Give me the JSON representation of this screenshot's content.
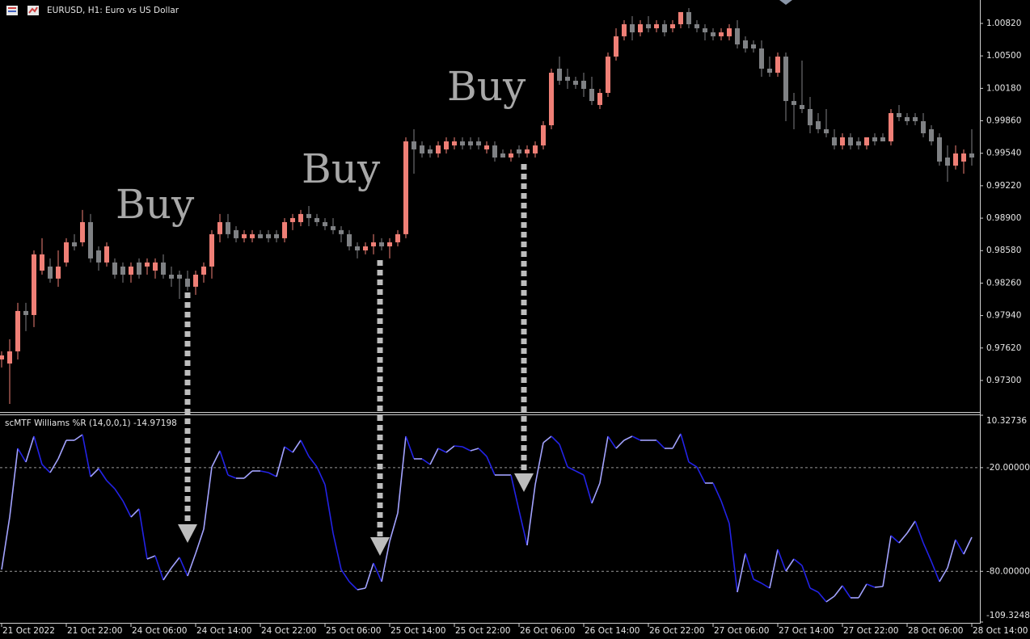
{
  "chart_data": [
    {
      "type": "candlestick",
      "title": "EURUSD, H1:  Euro vs US Dollar",
      "up_color": "#ef7f76",
      "down_color": "#7f8184",
      "ylim": [
        0.96989,
        1.01051
      ],
      "yticks": [
        {
          "value": 1.0082,
          "label": "1.00820"
        },
        {
          "value": 1.005,
          "label": "1.00500"
        },
        {
          "value": 1.0018,
          "label": "1.00180"
        },
        {
          "value": 0.9986,
          "label": "0.99860"
        },
        {
          "value": 0.9954,
          "label": "0.99540"
        },
        {
          "value": 0.9922,
          "label": "0.99220"
        },
        {
          "value": 0.989,
          "label": "0.98900"
        },
        {
          "value": 0.9858,
          "label": "0.98580"
        },
        {
          "value": 0.9826,
          "label": "0.98260"
        },
        {
          "value": 0.9794,
          "label": "0.97940"
        },
        {
          "value": 0.9762,
          "label": "0.97620"
        },
        {
          "value": 0.973,
          "label": "0.97300"
        }
      ],
      "annotations": [
        "Buy",
        "Buy",
        "Buy"
      ],
      "open": [
        0.97507,
        0.97467,
        0.97587,
        0.97985,
        0.97945,
        0.98383,
        0.98423,
        0.98304,
        0.98463,
        0.98662,
        0.98662,
        0.98861,
        0.98582,
        0.98463,
        0.98463,
        0.98423,
        0.98343,
        0.98463,
        0.98423,
        0.98383,
        0.98463,
        0.98343,
        0.98343,
        0.98304,
        0.98224,
        0.98343,
        0.98423,
        0.98742,
        0.98861,
        0.98782,
        0.98702,
        0.98702,
        0.98742,
        0.98742,
        0.98742,
        0.98702,
        0.98861,
        0.98861,
        0.98941,
        0.98901,
        0.98861,
        0.98821,
        0.98782,
        0.98742,
        0.98622,
        0.98582,
        0.98622,
        0.98662,
        0.98622,
        0.98662,
        0.98742,
        0.99657,
        0.99617,
        0.99578,
        0.99538,
        0.99578,
        0.99617,
        0.99657,
        0.99657,
        0.99657,
        0.99578,
        0.99617,
        0.99538,
        0.99498,
        0.99578,
        0.99538,
        0.99538,
        0.99617,
        0.99816,
        1.00374,
        1.00294,
        1.00255,
        1.00255,
        1.00175,
        1.00016,
        1.00135,
        1.00493,
        1.00693,
        1.00812,
        1.00732,
        1.00812,
        1.00772,
        1.00812,
        1.00772,
        1.00812,
        1.00932,
        1.00812,
        1.00772,
        1.00732,
        1.00693,
        1.00693,
        1.00772,
        1.00653,
        1.00613,
        1.00573,
        1.00374,
        1.00334,
        1.00493,
        1.00055,
        1.00016,
        0.99976,
        0.99856,
        0.99777,
        0.99697,
        0.99617,
        0.99697,
        0.99657,
        0.99617,
        0.99697,
        0.99697,
        0.99657,
        0.99936,
        0.99896,
        0.99896,
        0.99856,
        0.99777,
        0.99697,
        0.99498,
        0.99418,
        0.99458,
        0.99538
      ],
      "high": [
        0.97587,
        0.97706,
        0.98065,
        0.98065,
        0.98582,
        0.98702,
        0.98503,
        0.98582,
        0.98702,
        0.98742,
        0.98981,
        0.98941,
        0.98622,
        0.98662,
        0.98503,
        0.98463,
        0.98463,
        0.98503,
        0.98503,
        0.98503,
        0.98543,
        0.98423,
        0.98383,
        0.98383,
        0.98383,
        0.98463,
        0.98782,
        0.98941,
        0.98941,
        0.98821,
        0.98782,
        0.98782,
        0.98782,
        0.98782,
        0.98782,
        0.98901,
        0.98941,
        0.98981,
        0.9902,
        0.98941,
        0.98901,
        0.98901,
        0.98821,
        0.98782,
        0.98662,
        0.98662,
        0.98742,
        0.98702,
        0.98702,
        0.98782,
        0.99697,
        0.99777,
        0.99657,
        0.99617,
        0.99657,
        0.99697,
        0.99697,
        0.99697,
        0.99697,
        0.99697,
        0.99657,
        0.99657,
        0.99578,
        0.99578,
        0.99617,
        0.99617,
        0.99657,
        0.99856,
        1.00374,
        1.00493,
        1.00374,
        1.00294,
        1.00334,
        1.00294,
        1.00175,
        1.00533,
        1.00772,
        1.00852,
        1.00892,
        1.00852,
        1.00892,
        1.00852,
        1.00852,
        1.00852,
        1.00932,
        1.00971,
        1.00852,
        1.00812,
        1.00772,
        1.00772,
        1.00812,
        1.00852,
        1.00693,
        1.00653,
        1.00653,
        1.00493,
        1.00533,
        1.00533,
        1.00135,
        1.00454,
        1.00095,
        0.99936,
        0.99976,
        0.99777,
        0.99737,
        0.99737,
        0.99697,
        0.99697,
        0.99737,
        0.99737,
        0.99976,
        1.00016,
        0.99936,
        0.99936,
        0.99936,
        0.99816,
        0.99737,
        0.99617,
        0.99617,
        0.99578,
        0.99777
      ],
      "low": [
        0.97428,
        0.97069,
        0.97507,
        0.97786,
        0.97826,
        0.98343,
        0.98264,
        0.98224,
        0.98423,
        0.98582,
        0.98622,
        0.98463,
        0.98383,
        0.98423,
        0.98304,
        0.98264,
        0.98264,
        0.98304,
        0.98343,
        0.98304,
        0.98304,
        0.98224,
        0.98104,
        0.98184,
        0.98144,
        0.98264,
        0.98304,
        0.98662,
        0.98702,
        0.98662,
        0.98662,
        0.98662,
        0.98702,
        0.98662,
        0.98662,
        0.98662,
        0.98782,
        0.98821,
        0.98821,
        0.98821,
        0.98782,
        0.98742,
        0.98662,
        0.98582,
        0.98503,
        0.98543,
        0.98543,
        0.98582,
        0.98503,
        0.98622,
        0.98702,
        0.99339,
        0.99498,
        0.99498,
        0.99498,
        0.99538,
        0.99578,
        0.99578,
        0.99578,
        0.99578,
        0.99538,
        0.99458,
        0.99498,
        0.99458,
        0.99498,
        0.99498,
        0.99498,
        0.99578,
        0.99777,
        1.00215,
        1.00175,
        1.00175,
        1.00095,
        1.00016,
        0.99976,
        1.00095,
        1.00454,
        1.00653,
        1.00653,
        1.00693,
        1.00732,
        1.00732,
        1.00693,
        1.00732,
        1.00772,
        1.00772,
        1.00732,
        1.00653,
        1.00653,
        1.00653,
        1.00653,
        1.00573,
        1.00533,
        1.00533,
        1.00294,
        1.00294,
        1.00294,
        0.99856,
        0.99777,
        0.99936,
        0.99737,
        0.99737,
        0.99697,
        0.99578,
        0.99578,
        0.99578,
        0.99578,
        0.99578,
        0.99617,
        0.99657,
        0.99617,
        0.99856,
        0.99816,
        0.99816,
        0.99697,
        0.99617,
        0.99418,
        0.99259,
        0.99379,
        0.99339,
        0.99418
      ],
      "close": [
        0.97547,
        0.97587,
        0.97985,
        0.97945,
        0.98543,
        0.98543,
        0.98304,
        0.98423,
        0.98662,
        0.98622,
        0.98861,
        0.98503,
        0.98463,
        0.98622,
        0.98343,
        0.98343,
        0.98423,
        0.98343,
        0.98463,
        0.98463,
        0.98343,
        0.98304,
        0.98304,
        0.98224,
        0.98343,
        0.98423,
        0.98742,
        0.98861,
        0.98742,
        0.98702,
        0.98742,
        0.98742,
        0.98702,
        0.98702,
        0.98702,
        0.98861,
        0.98901,
        0.98941,
        0.98901,
        0.98861,
        0.98821,
        0.98782,
        0.98742,
        0.98622,
        0.98582,
        0.98622,
        0.98662,
        0.98622,
        0.98662,
        0.98742,
        0.99657,
        0.99578,
        0.99538,
        0.99538,
        0.99617,
        0.99657,
        0.99657,
        0.99617,
        0.99617,
        0.99617,
        0.99617,
        0.99498,
        0.99498,
        0.99538,
        0.99538,
        0.99578,
        0.99617,
        0.99816,
        1.00334,
        1.00255,
        1.00255,
        1.00215,
        1.00175,
        1.00055,
        1.00135,
        1.00493,
        1.00693,
        1.00812,
        1.00732,
        1.00812,
        1.00772,
        1.00812,
        1.00732,
        1.00812,
        1.00932,
        1.00812,
        1.00772,
        1.00732,
        1.00693,
        1.00732,
        1.00772,
        1.00613,
        1.00573,
        1.00573,
        1.00374,
        1.00334,
        1.00493,
        1.00055,
        1.00016,
        0.99976,
        0.99816,
        0.99777,
        0.99737,
        0.99617,
        0.99697,
        0.99617,
        0.99617,
        0.99697,
        0.99657,
        0.99657,
        0.99936,
        0.99896,
        0.99856,
        0.99856,
        0.99737,
        0.99657,
        0.99458,
        0.99418,
        0.99538,
        0.99538,
        0.99498
      ]
    },
    {
      "type": "line",
      "title": "scMTF Williams %R (14,0,0,1) -14.97198",
      "up_color": "#a3a3ff",
      "down_color": "#2323e6",
      "ylim": [
        -109.32484,
        10.32736
      ],
      "yticks": [
        10.32736,
        {
          "value": -20,
          "label": "-20.00000"
        },
        {
          "value": -80,
          "label": "-80.00000"
        },
        -109.32484
      ],
      "categories": [
        "21 Oct 2022",
        null,
        null,
        null,
        null,
        null,
        null,
        null,
        "21 Oct 22:00",
        null,
        null,
        null,
        null,
        null,
        null,
        null,
        "24 Oct 06:00",
        null,
        null,
        null,
        null,
        null,
        null,
        null,
        "24 Oct 14:00",
        null,
        null,
        null,
        null,
        null,
        null,
        null,
        "24 Oct 22:00",
        null,
        null,
        null,
        null,
        null,
        null,
        null,
        "25 Oct 06:00",
        null,
        null,
        null,
        null,
        null,
        null,
        null,
        "25 Oct 14:00",
        null,
        null,
        null,
        null,
        null,
        null,
        null,
        "25 Oct 22:00",
        null,
        null,
        null,
        null,
        null,
        null,
        null,
        "26 Oct 06:00",
        null,
        null,
        null,
        null,
        null,
        null,
        null,
        "26 Oct 14:00",
        null,
        null,
        null,
        null,
        null,
        null,
        null,
        "26 Oct 22:00",
        null,
        null,
        null,
        null,
        null,
        null,
        null,
        "27 Oct 06:00",
        null,
        null,
        null,
        null,
        null,
        null,
        null,
        "27 Oct 14:00",
        null,
        null,
        null,
        null,
        null,
        null,
        null,
        "27 Oct 22:00",
        null,
        null,
        null,
        null,
        null,
        null,
        null,
        "28 Oct 06:00",
        null,
        null,
        null,
        null,
        null,
        null,
        null,
        "28 Oct 14:00"
      ],
      "values": [
        -78.94,
        -48.57,
        -8.84,
        -16.78,
        -1.83,
        -18.18,
        -22.86,
        -14.91,
        -4.16,
        -4.16,
        -0.89,
        -25.2,
        -20.52,
        -27.53,
        -32.21,
        -39.22,
        -48.57,
        -43.89,
        -72.87,
        -71.0,
        -85.02,
        -78.01,
        -71.94,
        -82.69,
        -69.6,
        -55.58,
        -19.59,
        -10.24,
        -24.26,
        -26.13,
        -26.13,
        -21.92,
        -21.92,
        -22.86,
        -25.2,
        -7.9,
        -11.17,
        -4.16,
        -13.51,
        -19.59,
        -29.87,
        -57.91,
        -78.94,
        -85.96,
        -90.63,
        -89.7,
        -75.21,
        -85.96,
        -62.59,
        -46.23,
        -1.83,
        -14.91,
        -14.91,
        -18.18,
        -8.84,
        -11.17,
        -7.43,
        -7.9,
        -10.24,
        -8.84,
        -13.51,
        -24.26,
        -24.26,
        -24.26,
        -44.83,
        -64.92,
        -29.87,
        -5.56,
        -1.83,
        -6.5,
        -19.59,
        -21.92,
        -24.26,
        -40.62,
        -28.93,
        -1.83,
        -8.84,
        -4.16,
        -1.83,
        -4.16,
        -4.16,
        -4.16,
        -8.84,
        -8.84,
        -0.42,
        -16.78,
        -19.59,
        -28.93,
        -28.93,
        -39.22,
        -52.3,
        -92.03,
        -69.6,
        -84.55,
        -86.89,
        -89.7,
        -67.26,
        -79.88,
        -72.87,
        -76.61,
        -89.7,
        -92.03,
        -97.64,
        -94.37,
        -88.29,
        -95.3,
        -95.3,
        -87.36,
        -89.23,
        -88.76,
        -59.31,
        -63.52,
        -57.91,
        -50.9,
        -63.52,
        -74.27,
        -85.96,
        -78.01,
        -61.65,
        -70.06,
        -60.25
      ]
    }
  ]
}
